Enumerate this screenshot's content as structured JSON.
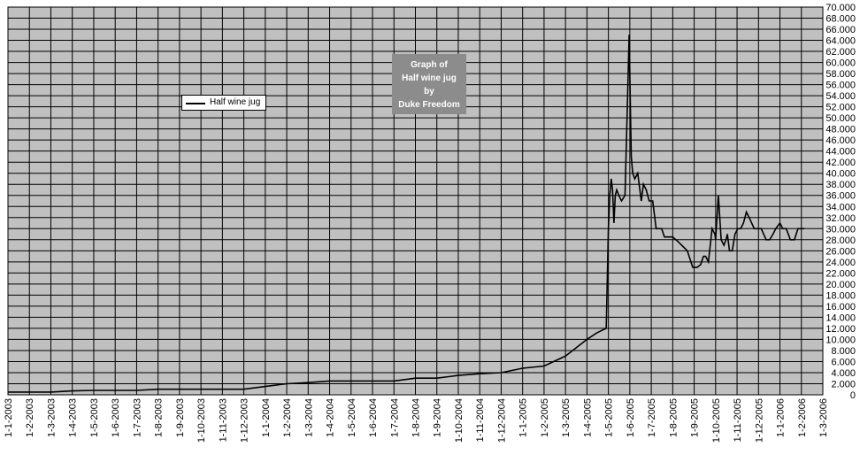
{
  "chart_data": {
    "type": "line",
    "title_lines": [
      "Graph of",
      "Half wine jug",
      "by",
      "Duke Freedom"
    ],
    "legend": "Half wine jug",
    "legend_position": "upper-left",
    "xlabel": "",
    "ylabel": "",
    "ylim": [
      0,
      70000
    ],
    "y_ticks": [
      "0",
      "2.000",
      "4.000",
      "6.000",
      "8.000",
      "10.000",
      "12.000",
      "14.000",
      "16.000",
      "18.000",
      "20.000",
      "22.000",
      "24.000",
      "26.000",
      "28.000",
      "30.000",
      "32.000",
      "34.000",
      "36.000",
      "38.000",
      "40.000",
      "42.000",
      "44.000",
      "46.000",
      "48.000",
      "50.000",
      "52.000",
      "54.000",
      "56.000",
      "58.000",
      "60.000",
      "62.000",
      "64.000",
      "66.000",
      "68.000",
      "70.000"
    ],
    "x_ticks": [
      "1-1-2003",
      "1-2-2003",
      "1-3-2003",
      "1-4-2003",
      "1-5-2003",
      "1-6-2003",
      "1-7-2003",
      "1-8-2003",
      "1-9-2003",
      "1-10-2003",
      "1-11-2003",
      "1-12-2003",
      "1-1-2004",
      "1-2-2004",
      "1-3-2004",
      "1-4-2004",
      "1-5-2004",
      "1-6-2004",
      "1-7-2004",
      "1-8-2004",
      "1-9-2004",
      "1-10-2004",
      "1-11-2004",
      "1-12-2004",
      "1-1-2005",
      "1-2-2005",
      "1-3-2005",
      "1-4-2005",
      "1-5-2005",
      "1-6-2005",
      "1-7-2005",
      "1-8-2005",
      "1-9-2005",
      "1-10-2005",
      "1-11-2005",
      "1-12-2005",
      "1-1-2006",
      "1-2-2006",
      "1-3-2006"
    ],
    "grid": "both",
    "colors": {
      "plot_background": "#c0c0c0",
      "gridline": "#000000",
      "series": "#000000",
      "title_box": "#8c8c8c",
      "title_text": "#ffffff"
    },
    "series": [
      {
        "name": "Half wine jug",
        "x": [
          "1-1-2003",
          "1-3-2003",
          "1-4-2003",
          "1-5-2003",
          "1-7-2003",
          "1-8-2003",
          "1-12-2003",
          "1-1-2004",
          "1-2-2004",
          "1-3-2004",
          "1-4-2004",
          "1-5-2004",
          "1-6-2004",
          "1-7-2004",
          "1-8-2004",
          "1-9-2004",
          "1-10-2004",
          "1-11-2004",
          "1-12-2004",
          "1-1-2005",
          "1-2-2005",
          "1-3-2005",
          "1-4-2005",
          "15-4-2005",
          "28-4-2005",
          "1-5-2005",
          "3-5-2005",
          "5-5-2005",
          "7-5-2005",
          "9-5-2005",
          "11-5-2005",
          "13-5-2005",
          "16-5-2005",
          "20-5-2005",
          "25-5-2005",
          "28-5-2005",
          "31-5-2005",
          "2-6-2005",
          "3-6-2005",
          "5-6-2005",
          "8-6-2005",
          "12-6-2005",
          "17-6-2005",
          "20-6-2005",
          "24-6-2005",
          "28-6-2005",
          "3-7-2005",
          "8-7-2005",
          "16-7-2005",
          "20-7-2005",
          "1-8-2005",
          "10-8-2005",
          "22-8-2005",
          "30-8-2005",
          "5-9-2005",
          "10-9-2005",
          "14-9-2005",
          "17-9-2005",
          "21-9-2005",
          "26-9-2005",
          "30-9-2005",
          "1-10-2005",
          "5-10-2005",
          "9-10-2005",
          "13-10-2005",
          "16-10-2005",
          "18-10-2005",
          "19-10-2005",
          "21-10-2005",
          "23-10-2005",
          "25-10-2005",
          "29-10-2005",
          "2-11-2005",
          "6-11-2005",
          "10-11-2005",
          "14-11-2005",
          "18-11-2005",
          "25-11-2005",
          "5-12-2005",
          "12-12-2005",
          "17-12-2005",
          "22-12-2005",
          "26-12-2005",
          "1-1-2006",
          "5-1-2006",
          "10-1-2006",
          "16-1-2006",
          "22-1-2006",
          "27-1-2006",
          "1-2-2006",
          "5-2-2006"
        ],
        "y": [
          500,
          500,
          700,
          800,
          800,
          1000,
          1000,
          1500,
          2000,
          2200,
          2500,
          2500,
          2500,
          2500,
          3000,
          3000,
          3500,
          3800,
          4000,
          4800,
          5200,
          7000,
          10000,
          11200,
          12000,
          30000,
          36000,
          39000,
          37000,
          31000,
          36000,
          37000,
          36000,
          35000,
          36000,
          50000,
          65000,
          50000,
          43000,
          40000,
          39000,
          40000,
          35000,
          38000,
          37000,
          35000,
          35000,
          30000,
          30000,
          28500,
          28500,
          27500,
          26000,
          23000,
          23000,
          23500,
          25000,
          25000,
          24000,
          30000,
          29000,
          28000,
          36000,
          28000,
          27000,
          28000,
          29000,
          28000,
          26000,
          26000,
          26000,
          29000,
          30000,
          30000,
          31000,
          33000,
          32000,
          30000,
          30000,
          28000,
          28000,
          29000,
          30000,
          31000,
          30000,
          30000,
          28000,
          28000,
          30000,
          30000,
          30000
        ]
      }
    ]
  }
}
